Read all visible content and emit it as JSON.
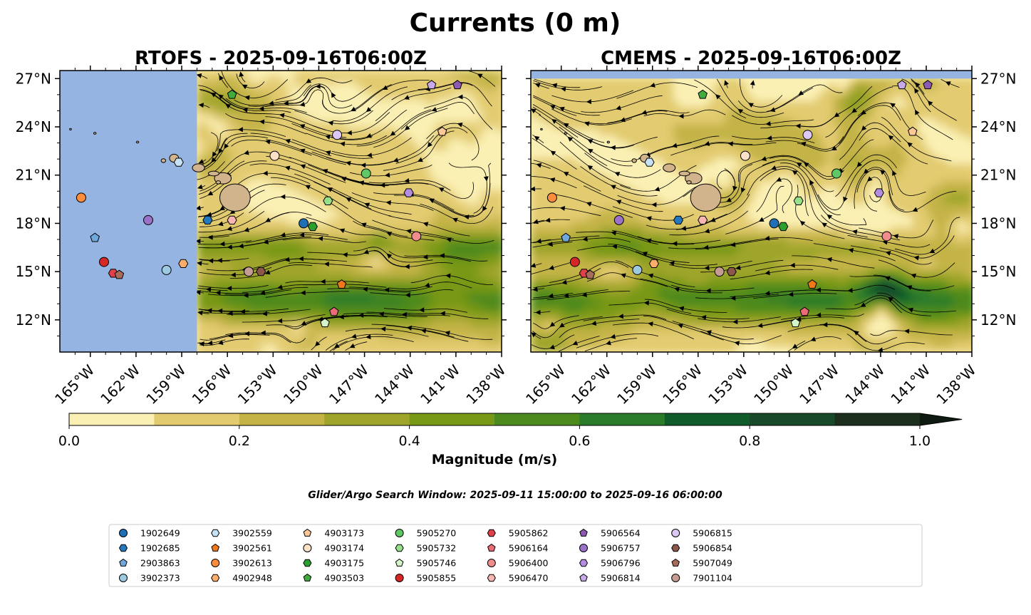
{
  "figure": {
    "title": "Currents (0 m)",
    "search_window": "Glider/Argo Search Window: 2025-09-11 15:00:00 to 2025-09-16 06:00:00",
    "colors": {
      "ocean_mask": "#95b4e2",
      "land": "#d2b48c",
      "streamline": "#000000"
    }
  },
  "chart_data": [
    {
      "type": "heatmap",
      "title": "RTOFS - 2025-09-16T06:00Z",
      "variable": "surface current magnitude with streamlines",
      "xlim": [
        -167,
        -138
      ],
      "ylim": [
        10,
        27.5
      ],
      "data_coverage_lon": [
        -158,
        -138
      ],
      "xticks": [
        "165°W",
        "162°W",
        "159°W",
        "156°W",
        "153°W",
        "150°W",
        "147°W",
        "144°W",
        "141°W",
        "138°W"
      ],
      "yticks": [
        "12°N",
        "15°N",
        "18°N",
        "21°N",
        "24°N",
        "27°N"
      ],
      "ytick_side": "left",
      "grid": false
    },
    {
      "type": "heatmap",
      "title": "CMEMS - 2025-09-16T06:00Z",
      "variable": "surface current magnitude with streamlines",
      "xlim": [
        -167,
        -138
      ],
      "ylim": [
        10,
        27.5
      ],
      "data_coverage_lat": [
        10,
        27
      ],
      "xticks": [
        "165°W",
        "162°W",
        "159°W",
        "156°W",
        "153°W",
        "150°W",
        "147°W",
        "144°W",
        "141°W",
        "138°W"
      ],
      "yticks": [
        "12°N",
        "15°N",
        "18°N",
        "21°N",
        "24°N",
        "27°N"
      ],
      "ytick_side": "right",
      "grid": false
    }
  ],
  "colorbar": {
    "label": "Magnitude (m/s)",
    "ticks": [
      "0.0",
      "0.2",
      "0.4",
      "0.6",
      "0.8",
      "1.0"
    ],
    "range": [
      0,
      1
    ],
    "extend": "max",
    "levels": [
      0,
      0.1,
      0.2,
      0.3,
      0.4,
      0.5,
      0.6,
      0.7,
      0.8,
      0.9,
      1.0
    ],
    "colors": [
      "#fbf0b4",
      "#e2cb6f",
      "#c4b446",
      "#9fa52a",
      "#789818",
      "#4d8a1e",
      "#2b7c2a",
      "#0f5c2a",
      "#184a2a",
      "#1c2e1e",
      "#0f1a10"
    ]
  },
  "legend": {
    "entries": [
      {
        "id": "1902649",
        "marker": "circle",
        "color": "#1f6fb4"
      },
      {
        "id": "1902685",
        "marker": "hexagon",
        "color": "#2479be"
      },
      {
        "id": "2903863",
        "marker": "pentagon",
        "color": "#6fa8dc"
      },
      {
        "id": "3902373",
        "marker": "circle",
        "color": "#9ecae1"
      },
      {
        "id": "3902559",
        "marker": "hexagon",
        "color": "#c6e2f4"
      },
      {
        "id": "3902561",
        "marker": "pentagon",
        "color": "#f07818"
      },
      {
        "id": "3902613",
        "marker": "circle",
        "color": "#fd8d3c"
      },
      {
        "id": "4902948",
        "marker": "hexagon",
        "color": "#fdae6b"
      },
      {
        "id": "4903173",
        "marker": "pentagon",
        "color": "#fdc896"
      },
      {
        "id": "4903174",
        "marker": "circle",
        "color": "#fde0c8"
      },
      {
        "id": "4903175",
        "marker": "hexagon",
        "color": "#2ca02c"
      },
      {
        "id": "4903503",
        "marker": "pentagon",
        "color": "#41ab3e"
      },
      {
        "id": "5905270",
        "marker": "circle",
        "color": "#5fc864"
      },
      {
        "id": "5905732",
        "marker": "hexagon",
        "color": "#98df8a"
      },
      {
        "id": "5905746",
        "marker": "pentagon",
        "color": "#d4f5c8"
      },
      {
        "id": "5905855",
        "marker": "circle",
        "color": "#d62728"
      },
      {
        "id": "5905862",
        "marker": "hexagon",
        "color": "#e0404a"
      },
      {
        "id": "5906164",
        "marker": "pentagon",
        "color": "#ea6a78"
      },
      {
        "id": "5906400",
        "marker": "circle",
        "color": "#f08c8c"
      },
      {
        "id": "5906470",
        "marker": "hexagon",
        "color": "#f7b6b2"
      },
      {
        "id": "5906564",
        "marker": "pentagon",
        "color": "#8c5ab4"
      },
      {
        "id": "5906757",
        "marker": "circle",
        "color": "#9b72c8"
      },
      {
        "id": "5906796",
        "marker": "hexagon",
        "color": "#b48ce0"
      },
      {
        "id": "5906814",
        "marker": "pentagon",
        "color": "#c8aaea"
      },
      {
        "id": "5906815",
        "marker": "circle",
        "color": "#dcc8f5"
      },
      {
        "id": "5906854",
        "marker": "hexagon",
        "color": "#8c564b"
      },
      {
        "id": "5907049",
        "marker": "pentagon",
        "color": "#a86c5a"
      },
      {
        "id": "7901104",
        "marker": "circle",
        "color": "#c49c94"
      }
    ]
  },
  "floats": [
    {
      "id": "1902649",
      "lon": -151.0,
      "lat": 18.0
    },
    {
      "id": "1902685",
      "lon": -157.3,
      "lat": 18.2
    },
    {
      "id": "2903863",
      "lon": -164.7,
      "lat": 17.1
    },
    {
      "id": "3902373",
      "lon": -160.0,
      "lat": 15.1
    },
    {
      "id": "3902559",
      "lon": -159.2,
      "lat": 21.8
    },
    {
      "id": "3902561",
      "lon": -148.5,
      "lat": 14.2
    },
    {
      "id": "3902613",
      "lon": -165.6,
      "lat": 19.6
    },
    {
      "id": "4902948",
      "lon": -158.9,
      "lat": 15.5
    },
    {
      "id": "4903173",
      "lon": -141.9,
      "lat": 23.7
    },
    {
      "id": "4903174",
      "lon": -152.9,
      "lat": 22.2
    },
    {
      "id": "4903175",
      "lon": -150.4,
      "lat": 17.8
    },
    {
      "id": "4903503",
      "lon": -155.7,
      "lat": 26.0
    },
    {
      "id": "5905270",
      "lon": -146.9,
      "lat": 21.1
    },
    {
      "id": "5905732",
      "lon": -149.4,
      "lat": 19.4
    },
    {
      "id": "5905746",
      "lon": -149.6,
      "lat": 11.8
    },
    {
      "id": "5905855",
      "lon": -164.1,
      "lat": 15.6
    },
    {
      "id": "5905862",
      "lon": -163.5,
      "lat": 14.9
    },
    {
      "id": "5906164",
      "lon": -149.0,
      "lat": 12.5
    },
    {
      "id": "5906400",
      "lon": -143.6,
      "lat": 17.2
    },
    {
      "id": "5906470",
      "lon": -155.7,
      "lat": 18.2
    },
    {
      "id": "5906564",
      "lon": -140.9,
      "lat": 26.6
    },
    {
      "id": "5906757",
      "lon": -161.2,
      "lat": 18.2
    },
    {
      "id": "5906796",
      "lon": -144.1,
      "lat": 19.9
    },
    {
      "id": "5906814",
      "lon": -142.6,
      "lat": 26.6
    },
    {
      "id": "5906815",
      "lon": -148.8,
      "lat": 23.5
    },
    {
      "id": "5906854",
      "lon": -153.8,
      "lat": 15.0
    },
    {
      "id": "5907049",
      "lon": -163.1,
      "lat": 14.8
    },
    {
      "id": "7901104",
      "lon": -154.6,
      "lat": 15.0
    }
  ]
}
